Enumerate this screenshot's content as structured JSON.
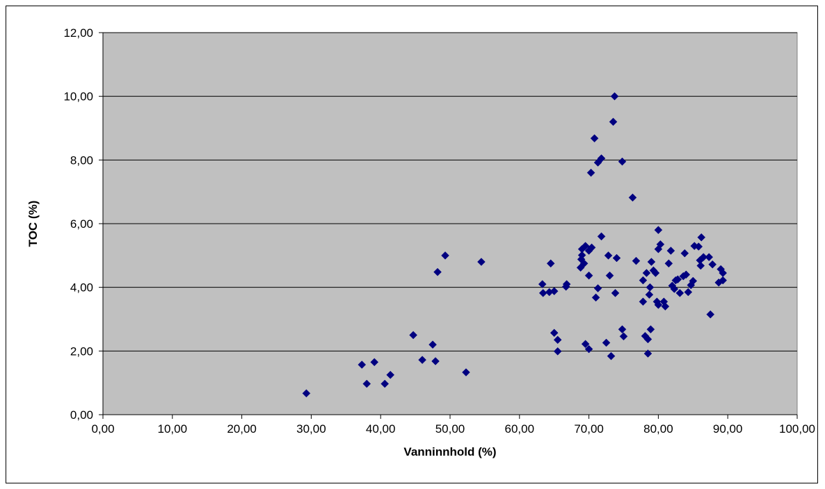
{
  "chart_data": {
    "type": "scatter",
    "xlabel": "Vanninnhold (%)",
    "ylabel": "TOC (%)",
    "xlim": [
      0,
      100
    ],
    "ylim": [
      0,
      12
    ],
    "x_ticks": [
      "0,00",
      "10,00",
      "20,00",
      "30,00",
      "40,00",
      "50,00",
      "60,00",
      "70,00",
      "80,00",
      "90,00",
      "100,00"
    ],
    "y_ticks": [
      "0,00",
      "2,00",
      "4,00",
      "6,00",
      "8,00",
      "10,00",
      "12,00"
    ],
    "x_tick_values": [
      0,
      10,
      20,
      30,
      40,
      50,
      60,
      70,
      80,
      90,
      100
    ],
    "y_tick_values": [
      0,
      2,
      4,
      6,
      8,
      10,
      12
    ],
    "grid": "horizontal",
    "legend": "none",
    "plot_background": "#c0c0c0",
    "marker": "diamond",
    "marker_color": "#000080",
    "points": [
      [
        29.3,
        0.67
      ],
      [
        37.3,
        1.57
      ],
      [
        38.0,
        0.97
      ],
      [
        39.1,
        1.65
      ],
      [
        40.6,
        0.97
      ],
      [
        41.4,
        1.25
      ],
      [
        44.7,
        2.5
      ],
      [
        46.0,
        1.72
      ],
      [
        47.5,
        2.2
      ],
      [
        47.9,
        1.68
      ],
      [
        48.2,
        4.48
      ],
      [
        49.3,
        5.0
      ],
      [
        52.3,
        1.33
      ],
      [
        54.5,
        4.8
      ],
      [
        63.3,
        4.1
      ],
      [
        63.4,
        3.82
      ],
      [
        64.3,
        3.85
      ],
      [
        64.5,
        4.75
      ],
      [
        65.0,
        3.88
      ],
      [
        65.0,
        2.57
      ],
      [
        65.5,
        2.35
      ],
      [
        65.5,
        1.99
      ],
      [
        66.7,
        4.02
      ],
      [
        66.8,
        4.1
      ],
      [
        68.8,
        4.62
      ],
      [
        68.9,
        4.88
      ],
      [
        69.0,
        5.01
      ],
      [
        69.0,
        5.2
      ],
      [
        69.3,
        4.75
      ],
      [
        69.5,
        2.22
      ],
      [
        69.5,
        5.3
      ],
      [
        70.0,
        5.15
      ],
      [
        70.0,
        4.37
      ],
      [
        70.0,
        2.06
      ],
      [
        70.3,
        7.6
      ],
      [
        70.4,
        5.25
      ],
      [
        70.8,
        8.68
      ],
      [
        71.0,
        3.68
      ],
      [
        71.3,
        7.92
      ],
      [
        71.3,
        3.97
      ],
      [
        71.8,
        8.05
      ],
      [
        71.8,
        5.6
      ],
      [
        72.5,
        2.26
      ],
      [
        72.8,
        5.0
      ],
      [
        73.0,
        4.37
      ],
      [
        73.2,
        1.84
      ],
      [
        73.5,
        9.2
      ],
      [
        73.7,
        10.0
      ],
      [
        73.8,
        3.82
      ],
      [
        74.0,
        4.92
      ],
      [
        74.8,
        2.68
      ],
      [
        74.8,
        7.95
      ],
      [
        75.0,
        2.46
      ],
      [
        76.3,
        6.82
      ],
      [
        76.8,
        4.83
      ],
      [
        77.8,
        4.22
      ],
      [
        77.8,
        3.55
      ],
      [
        78.1,
        2.47
      ],
      [
        78.3,
        4.45
      ],
      [
        78.5,
        2.37
      ],
      [
        78.5,
        1.92
      ],
      [
        78.7,
        3.77
      ],
      [
        78.8,
        4.0
      ],
      [
        78.9,
        2.68
      ],
      [
        79.0,
        4.8
      ],
      [
        79.3,
        4.53
      ],
      [
        79.6,
        4.45
      ],
      [
        79.8,
        3.55
      ],
      [
        80.0,
        5.2
      ],
      [
        80.0,
        3.45
      ],
      [
        80.0,
        5.8
      ],
      [
        80.3,
        5.35
      ],
      [
        80.8,
        3.55
      ],
      [
        81.0,
        3.4
      ],
      [
        81.5,
        4.75
      ],
      [
        81.8,
        5.15
      ],
      [
        82.0,
        4.05
      ],
      [
        82.3,
        3.95
      ],
      [
        82.5,
        4.22
      ],
      [
        82.8,
        4.25
      ],
      [
        83.1,
        3.82
      ],
      [
        83.6,
        4.35
      ],
      [
        83.8,
        5.07
      ],
      [
        84.0,
        4.4
      ],
      [
        84.3,
        3.85
      ],
      [
        84.7,
        4.07
      ],
      [
        85.0,
        4.2
      ],
      [
        85.2,
        5.3
      ],
      [
        85.8,
        5.28
      ],
      [
        86.0,
        4.85
      ],
      [
        86.1,
        4.68
      ],
      [
        86.2,
        5.57
      ],
      [
        86.5,
        4.95
      ],
      [
        87.3,
        4.95
      ],
      [
        87.5,
        3.15
      ],
      [
        87.8,
        4.72
      ],
      [
        88.7,
        4.15
      ],
      [
        89.0,
        4.57
      ],
      [
        89.3,
        4.22
      ],
      [
        89.3,
        4.45
      ]
    ]
  }
}
